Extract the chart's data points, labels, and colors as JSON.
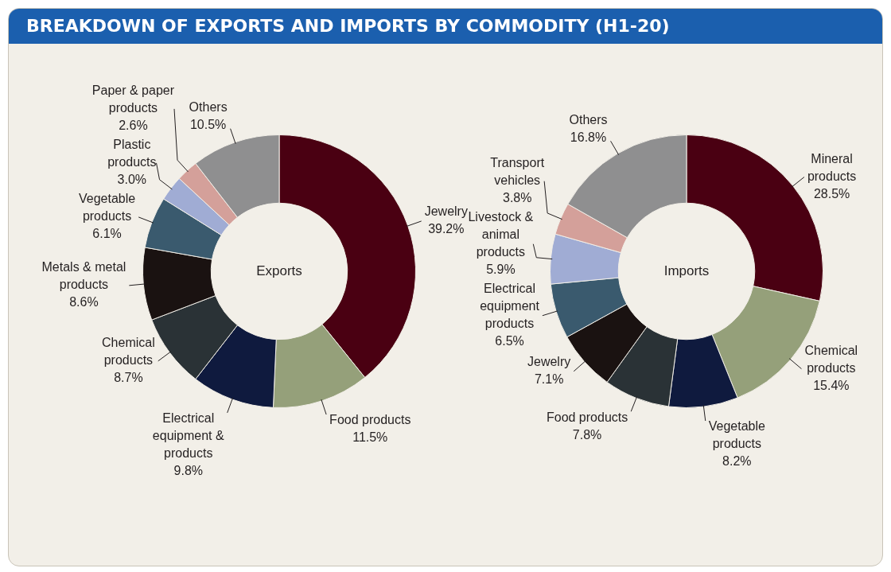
{
  "chart_data": [
    {
      "type": "donut",
      "title": "BREAKDOWN OF EXPORTS AND IMPORTS BY COMMODITY (H1-20)",
      "subtitle": "Exports",
      "legend": false,
      "categories": [
        "Jewelry",
        "Food products",
        "Electrical equipment & products",
        "Chemical products",
        "Metals & metal products",
        "Vegetable products",
        "Plastic products",
        "Paper & paper products",
        "Others"
      ],
      "values": [
        39.2,
        11.5,
        9.8,
        8.7,
        8.6,
        6.1,
        3.0,
        2.6,
        10.5
      ],
      "value_labels": [
        "39.2%",
        "11.5%",
        "9.8%",
        "8.7%",
        "8.6%",
        "6.1%",
        "3.0%",
        "2.6%",
        "10.5%"
      ],
      "colors": [
        "#4a0012",
        "#95a07a",
        "#0f1a3e",
        "#2a3236",
        "#1a1211",
        "#3a5a6e",
        "#a0acd4",
        "#d4a09a",
        "#8f8f90"
      ]
    },
    {
      "type": "donut",
      "subtitle": "Imports",
      "legend": false,
      "categories": [
        "Mineral products",
        "Chemical products",
        "Vegetable products",
        "Food products",
        "Jewelry",
        "Electrical equipment products",
        "Livestock & animal products",
        "Transport vehicles",
        "Others"
      ],
      "values": [
        28.5,
        15.4,
        8.2,
        7.8,
        7.1,
        6.5,
        5.9,
        3.8,
        16.8
      ],
      "value_labels": [
        "28.5%",
        "15.4%",
        "8.2%",
        "7.8%",
        "7.1%",
        "6.5%",
        "5.9%",
        "3.8%",
        "16.8%"
      ],
      "colors": [
        "#4a0012",
        "#95a07a",
        "#0f1a3e",
        "#2a3236",
        "#1a1211",
        "#3a5a6e",
        "#a0acd4",
        "#d4a09a",
        "#8f8f90"
      ]
    }
  ]
}
